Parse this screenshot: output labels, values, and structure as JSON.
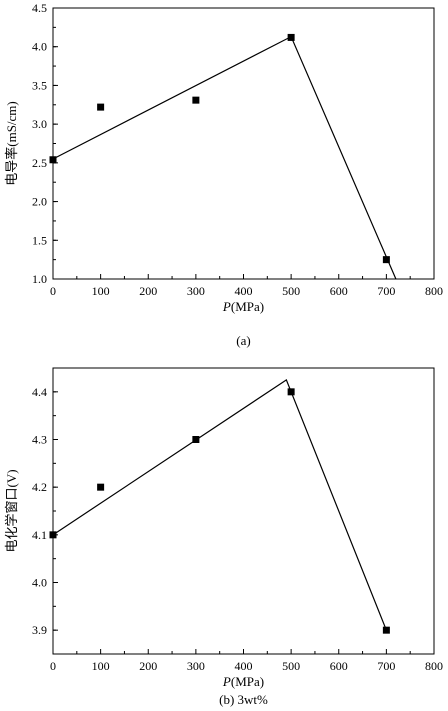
{
  "chart_data": [
    {
      "type": "scatter",
      "caption": "(a)",
      "xlabel_italic": "P",
      "xlabel_unit": "(MPa)",
      "ylabel": "电导率(mS/cm)",
      "xlim": [
        0,
        800
      ],
      "ylim": [
        1.0,
        4.5
      ],
      "xticks": [
        "0",
        "100",
        "200",
        "300",
        "400",
        "500",
        "600",
        "700",
        "800"
      ],
      "yticks": [
        "1.0",
        "1.5",
        "2.0",
        "2.5",
        "3.0",
        "3.5",
        "4.0",
        "4.5"
      ],
      "points": {
        "x": [
          0,
          100,
          300,
          500,
          700
        ],
        "y": [
          2.54,
          3.22,
          3.31,
          4.12,
          1.25
        ]
      },
      "fit_line": {
        "x": [
          0,
          500,
          720
        ],
        "y": [
          2.55,
          4.13,
          1.0
        ]
      },
      "grid": false,
      "legend": "none"
    },
    {
      "type": "scatter",
      "caption": "(b) 3wt%",
      "xlabel_italic": "P",
      "xlabel_unit": "(MPa)",
      "ylabel": "电化学窗口(V)",
      "xlim": [
        0,
        800
      ],
      "ylim": [
        3.85,
        4.45
      ],
      "xticks": [
        "0",
        "100",
        "200",
        "300",
        "400",
        "500",
        "600",
        "700",
        "800"
      ],
      "yticks": [
        "3.9",
        "4.0",
        "4.1",
        "4.2",
        "4.3",
        "4.4"
      ],
      "points": {
        "x": [
          0,
          100,
          300,
          500,
          700
        ],
        "y": [
          4.1,
          4.2,
          4.3,
          4.4,
          3.9
        ]
      },
      "fit_line": {
        "x": [
          0,
          490,
          700
        ],
        "y": [
          4.1,
          4.425,
          3.9
        ]
      },
      "grid": false,
      "legend": "none"
    }
  ]
}
